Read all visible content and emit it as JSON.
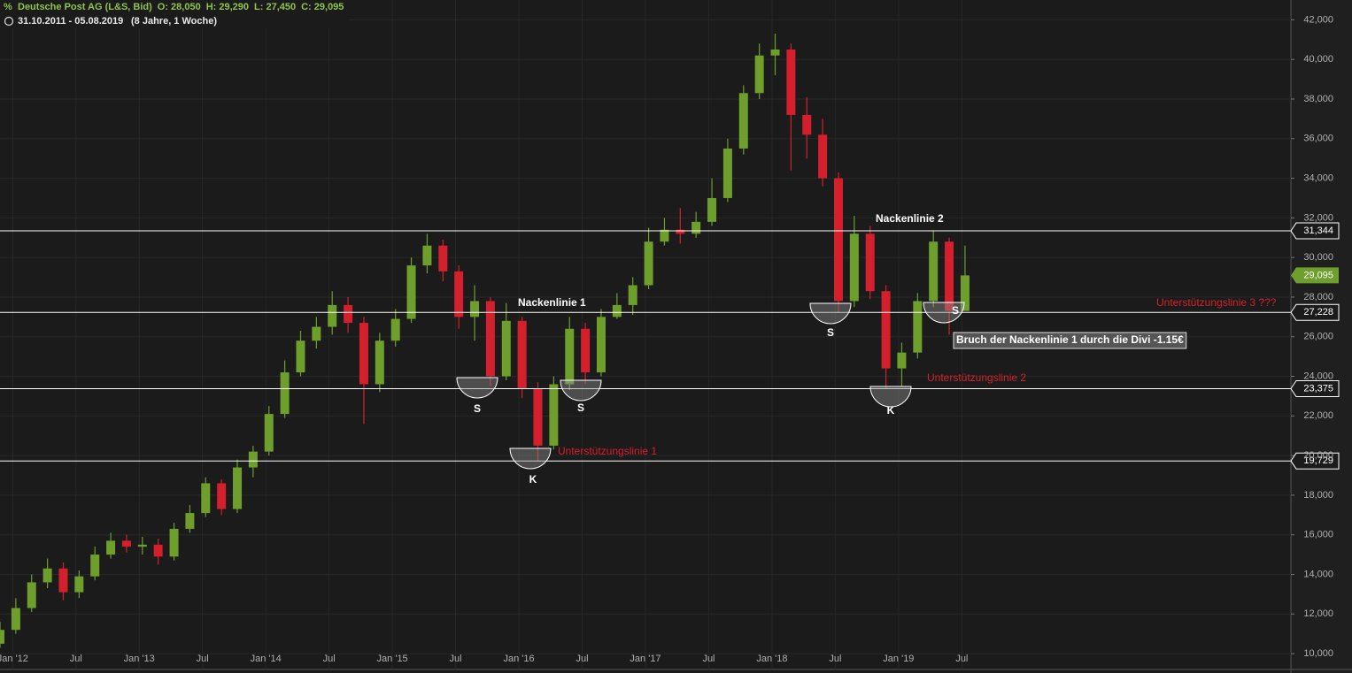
{
  "chart_data": {
    "type": "candlestick",
    "title": "Deutsche Post AG (L&S, Bid)",
    "quote": [
      "O: 28,050",
      "H: 29,290",
      "L: 27,450",
      "C: 29,095"
    ],
    "period": "31.10.2011 - 05.08.2019",
    "period_note": "(8 Jahre, 1 Woche)",
    "up_color": "#6e9e2c",
    "down_color": "#d4202c",
    "x": [
      2011.9,
      2012.025,
      2012.15,
      2012.275,
      2012.4,
      2012.525,
      2012.65,
      2012.775,
      2012.9,
      2013.025,
      2013.15,
      2013.275,
      2013.4,
      2013.525,
      2013.65,
      2013.775,
      2013.9,
      2014.025,
      2014.15,
      2014.275,
      2014.4,
      2014.525,
      2014.65,
      2014.775,
      2014.9,
      2015.025,
      2015.15,
      2015.275,
      2015.4,
      2015.525,
      2015.65,
      2015.775,
      2015.9,
      2016.025,
      2016.15,
      2016.275,
      2016.4,
      2016.525,
      2016.65,
      2016.775,
      2016.9,
      2017.025,
      2017.15,
      2017.275,
      2017.4,
      2017.525,
      2017.65,
      2017.775,
      2017.9,
      2018.025,
      2018.15,
      2018.275,
      2018.4,
      2018.525,
      2018.65,
      2018.775,
      2018.9,
      2019.025,
      2019.15,
      2019.275,
      2019.4,
      2019.525
    ],
    "open": [
      10500,
      11200,
      12300,
      13600,
      14300,
      13100,
      13900,
      15000,
      15700,
      15400,
      15500,
      14900,
      16300,
      17100,
      18600,
      17300,
      19400,
      20200,
      22100,
      24200,
      25800,
      26500,
      27600,
      26700,
      23600,
      25800,
      26900,
      29600,
      30600,
      29300,
      27000,
      27800,
      24000,
      26800,
      23400,
      20500,
      23600,
      26400,
      24200,
      27000,
      27600,
      28600,
      30800,
      31400,
      31200,
      31800,
      33000,
      35500,
      38300,
      40200,
      40500,
      37200,
      36200,
      34000,
      27800,
      31200,
      28300,
      24400,
      25200,
      27800,
      30800,
      27300
    ],
    "high": [
      11600,
      12800,
      14000,
      14800,
      14600,
      14200,
      15400,
      16100,
      16000,
      15900,
      15800,
      16600,
      17500,
      18900,
      18800,
      19800,
      20500,
      22500,
      24800,
      26300,
      27000,
      28300,
      28000,
      27000,
      26200,
      27400,
      30000,
      31200,
      30900,
      29600,
      28600,
      28000,
      27700,
      27000,
      23700,
      24000,
      27000,
      26700,
      27400,
      28200,
      29000,
      31500,
      32000,
      32500,
      32300,
      34000,
      36000,
      38700,
      40800,
      41300,
      40800,
      38100,
      37000,
      34300,
      32100,
      31600,
      28600,
      25700,
      28200,
      31344,
      31000,
      30600
    ],
    "low": [
      10300,
      11000,
      12100,
      13300,
      12700,
      12800,
      13700,
      14800,
      15100,
      15000,
      14500,
      14700,
      16100,
      16900,
      17000,
      17100,
      18900,
      20000,
      21900,
      24000,
      25400,
      26100,
      26200,
      21600,
      23200,
      25500,
      26700,
      29200,
      28800,
      26400,
      25800,
      23500,
      23800,
      22900,
      19729,
      20300,
      23300,
      23600,
      24000,
      26900,
      27100,
      28400,
      30600,
      30700,
      31000,
      31600,
      32800,
      35200,
      38000,
      39200,
      34400,
      35000,
      33600,
      27228,
      27500,
      27900,
      23375,
      23500,
      24900,
      27500,
      26100,
      27450
    ],
    "close": [
      11200,
      12300,
      13600,
      14300,
      13100,
      13900,
      15000,
      15700,
      15400,
      15500,
      14900,
      16300,
      17100,
      18600,
      17300,
      19400,
      20200,
      22100,
      24200,
      25800,
      26500,
      27600,
      26700,
      23600,
      25800,
      26900,
      29600,
      30600,
      29300,
      27000,
      27800,
      24000,
      26800,
      23400,
      20500,
      23600,
      26400,
      24200,
      27000,
      27600,
      28600,
      30800,
      31400,
      31200,
      31800,
      33000,
      35500,
      38300,
      40200,
      40500,
      37200,
      36200,
      34000,
      27800,
      31200,
      28300,
      24400,
      25200,
      27800,
      30800,
      27300,
      29095
    ],
    "xlim": [
      2011.9,
      2022.1
    ],
    "xticks": [
      {
        "value": 2012,
        "label": "Jan '12"
      },
      {
        "value": 2012.5,
        "label": "Jul"
      },
      {
        "value": 2013,
        "label": "Jan '13"
      },
      {
        "value": 2013.5,
        "label": "Jul"
      },
      {
        "value": 2014,
        "label": "Jan '14"
      },
      {
        "value": 2014.5,
        "label": "Jul"
      },
      {
        "value": 2015,
        "label": "Jan '15"
      },
      {
        "value": 2015.5,
        "label": "Jul"
      },
      {
        "value": 2016,
        "label": "Jan '16"
      },
      {
        "value": 2016.5,
        "label": "Jul"
      },
      {
        "value": 2017,
        "label": "Jan '17"
      },
      {
        "value": 2017.5,
        "label": "Jul"
      },
      {
        "value": 2018,
        "label": "Jan '18"
      },
      {
        "value": 2018.5,
        "label": "Jul"
      },
      {
        "value": 2019,
        "label": "Jan '19"
      },
      {
        "value": 2019.5,
        "label": "Jul"
      }
    ],
    "ylim": [
      9200,
      43000
    ],
    "yticks": [
      {
        "value": 10000,
        "label": "10,000"
      },
      {
        "value": 12000,
        "label": "12,000"
      },
      {
        "value": 14000,
        "label": "14,000"
      },
      {
        "value": 16000,
        "label": "16,000"
      },
      {
        "value": 18000,
        "label": "18,000"
      },
      {
        "value": 20000,
        "label": "20,000"
      },
      {
        "value": 22000,
        "label": "22,000"
      },
      {
        "value": 24000,
        "label": "24,000"
      },
      {
        "value": 26000,
        "label": "26,000"
      },
      {
        "value": 28000,
        "label": "28,000"
      },
      {
        "value": 30000,
        "label": "30,000"
      },
      {
        "value": 32000,
        "label": "32,000"
      },
      {
        "value": 34000,
        "label": "34,000"
      },
      {
        "value": 36000,
        "label": "36,000"
      },
      {
        "value": 38000,
        "label": "38,000"
      },
      {
        "value": 40000,
        "label": "40,000"
      },
      {
        "value": 42000,
        "label": "42,000"
      }
    ],
    "grid": true,
    "levels": [
      {
        "value": 31344,
        "label": "31,344"
      },
      {
        "value": 27228,
        "label": "27,228"
      },
      {
        "value": 23375,
        "label": "23,375"
      },
      {
        "value": 19729,
        "label": "19,729"
      }
    ],
    "last": {
      "value": 29095,
      "label": "29,095"
    },
    "annotations": [
      {
        "text": "Nackenlinie 1",
        "color": "#ffffff"
      },
      {
        "text": "Nackenlinie 2",
        "color": "#ffffff"
      },
      {
        "text": "S",
        "color": "#ffffff"
      },
      {
        "text": "S",
        "color": "#ffffff"
      },
      {
        "text": "K",
        "color": "#ffffff"
      },
      {
        "text": "S",
        "color": "#ffffff"
      },
      {
        "text": "K",
        "color": "#ffffff"
      },
      {
        "text": "S",
        "color": "#ffffff"
      },
      {
        "text": "Unterstützungslinie 1",
        "color": "#d4202c"
      },
      {
        "text": "Unterstützungslinie 2",
        "color": "#d4202c"
      },
      {
        "text": "Unterstützungslinie 3  ???",
        "color": "#d4202c"
      },
      {
        "text": "Bruch der Nackenlinie 1 durch die Divi -1.15€",
        "color": "#ffffff"
      }
    ]
  }
}
